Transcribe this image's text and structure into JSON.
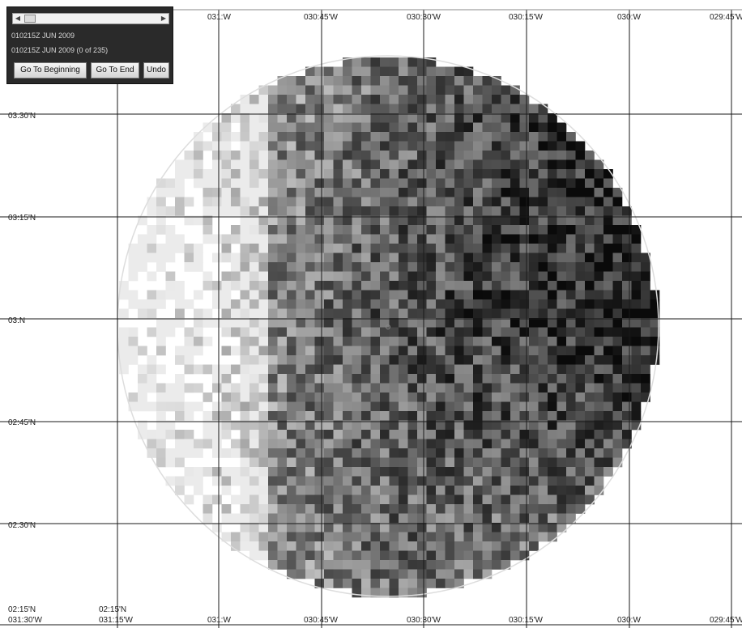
{
  "map": {
    "lon_labels": [
      "031:W",
      "030:45'W",
      "030:30'W",
      "030:15'W",
      "030:W",
      "029:45'W"
    ],
    "bottom_lon_labels": [
      "031:30'W",
      "031:15'W",
      "031:W",
      "030:45'W",
      "030:30'W",
      "030:15'W",
      "030:W",
      "029:45'W"
    ],
    "lat_labels": [
      "03:30'N",
      "03:15'N",
      "03:N",
      "02:45'N",
      "02:30'N"
    ],
    "corner_lat_labels": [
      "02:15'N",
      "02:15'N"
    ],
    "colors": {
      "grid": "#1a1a1a",
      "circle_outline": "#dddddd",
      "center_marker": "#888888"
    },
    "overlay": "radar-coverage-grayscale-grid"
  },
  "time_panel": {
    "current_time": "010215Z JUN 2009",
    "frame_status": "010215Z JUN 2009 (0 of 235)",
    "buttons": {
      "go_to_beginning": "Go To Beginning",
      "go_to_end": "Go To End",
      "undo": "Undo"
    }
  }
}
